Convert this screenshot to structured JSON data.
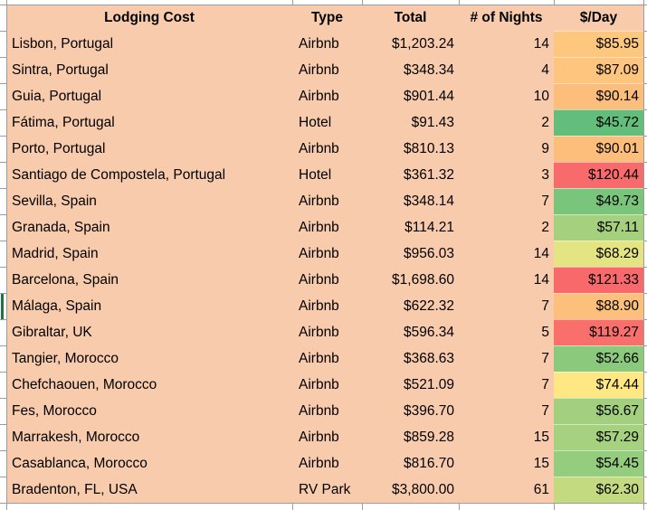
{
  "table": {
    "columns": [
      {
        "key": "location",
        "label": "Lodging Cost"
      },
      {
        "key": "type",
        "label": "Type"
      },
      {
        "key": "total",
        "label": "Total"
      },
      {
        "key": "nights",
        "label": "# of Nights"
      },
      {
        "key": "per_day",
        "label": "$/Day"
      }
    ],
    "rows": [
      {
        "location": "Lisbon, Portugal",
        "type": "Airbnb",
        "total": "$1,203.24",
        "nights": "14",
        "per_day": "$85.95",
        "per_day_color": "#FDC87D"
      },
      {
        "location": "Sintra, Portugal",
        "type": "Airbnb",
        "total": "$348.34",
        "nights": "4",
        "per_day": "$87.09",
        "per_day_color": "#FDC57D"
      },
      {
        "location": "Guia, Portugal",
        "type": "Airbnb",
        "total": "$901.44",
        "nights": "10",
        "per_day": "$90.14",
        "per_day_color": "#FDBD7B"
      },
      {
        "location": "Fátima, Portugal",
        "type": "Hotel",
        "total": "$91.43",
        "nights": "2",
        "per_day": "$45.72",
        "per_day_color": "#63BE7B"
      },
      {
        "location": "Porto, Portugal",
        "type": "Airbnb",
        "total": "$810.13",
        "nights": "9",
        "per_day": "$90.01",
        "per_day_color": "#FDBE7C"
      },
      {
        "location": "Santiago de Compostela, Portugal",
        "type": "Hotel",
        "total": "$361.32",
        "nights": "3",
        "per_day": "$120.44",
        "per_day_color": "#F86B6C"
      },
      {
        "location": "Sevilla, Spain",
        "type": "Airbnb",
        "total": "$348.14",
        "nights": "7",
        "per_day": "$49.73",
        "per_day_color": "#7AC57C"
      },
      {
        "location": "Granada, Spain",
        "type": "Airbnb",
        "total": "$114.21",
        "nights": "2",
        "per_day": "$57.11",
        "per_day_color": "#A5D17F"
      },
      {
        "location": "Madrid, Spain",
        "type": "Airbnb",
        "total": "$956.03",
        "nights": "14",
        "per_day": "$68.29",
        "per_day_color": "#E5E483"
      },
      {
        "location": "Barcelona, Spain",
        "type": "Airbnb",
        "total": "$1,698.60",
        "nights": "14",
        "per_day": "$121.33",
        "per_day_color": "#F8696B"
      },
      {
        "location": "Málaga, Spain",
        "type": "Airbnb",
        "total": "$622.32",
        "nights": "7",
        "per_day": "$88.90",
        "per_day_color": "#FDC07C"
      },
      {
        "location": "Gibraltar, UK",
        "type": "Airbnb",
        "total": "$596.34",
        "nights": "5",
        "per_day": "$119.27",
        "per_day_color": "#F86F6C"
      },
      {
        "location": "Tangier, Morocco",
        "type": "Airbnb",
        "total": "$368.63",
        "nights": "7",
        "per_day": "$52.66",
        "per_day_color": "#8BCA7D"
      },
      {
        "location": "Chefchaouen, Morocco",
        "type": "Airbnb",
        "total": "$521.09",
        "nights": "7",
        "per_day": "$74.44",
        "per_day_color": "#FFE783"
      },
      {
        "location": "Fes, Morocco",
        "type": "Airbnb",
        "total": "$396.70",
        "nights": "7",
        "per_day": "$56.67",
        "per_day_color": "#A2D07F"
      },
      {
        "location": "Marrakesh, Morocco",
        "type": "Airbnb",
        "total": "$859.28",
        "nights": "15",
        "per_day": "$57.29",
        "per_day_color": "#A6D17F"
      },
      {
        "location": "Casablanca, Morocco",
        "type": "Airbnb",
        "total": "$816.70",
        "nights": "15",
        "per_day": "$54.45",
        "per_day_color": "#95CD7E"
      },
      {
        "location": "Bradenton, FL, USA",
        "type": "RV Park",
        "total": "$3,800.00",
        "nights": "61",
        "per_day": "$62.30",
        "per_day_color": "#C3DA81"
      }
    ]
  },
  "colors": {
    "cell_fill": "#F8CBAD",
    "gridline": "#9C9C9C",
    "selection_green": "#1F7244",
    "scale_min_green": "#63BE7B",
    "scale_mid_yellow": "#FFEB84",
    "scale_max_red": "#F8696B",
    "text": "#000000"
  }
}
